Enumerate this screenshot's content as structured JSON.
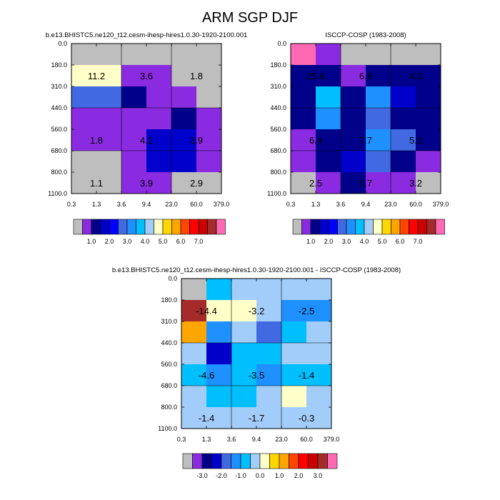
{
  "figure": {
    "title": "ARM SGP DJF"
  },
  "colors": {
    "abs_palette": [
      "#bebebe",
      "#8a2be2",
      "#00008b",
      "#0000cd",
      "#0000ff",
      "#4169e1",
      "#1e90ff",
      "#00bfff",
      "#a2cdfa",
      "#ffffc8",
      "#ffd700",
      "#ffa500",
      "#ff4500",
      "#ff0000",
      "#cd0000",
      "#a52a2a",
      "#ff69b4"
    ],
    "diff_palette": [
      "#bebebe",
      "#8a2be2",
      "#00008b",
      "#0000cd",
      "#4169e1",
      "#1e90ff",
      "#00bfff",
      "#a2cdfa",
      "#ffffc8",
      "#ffd700",
      "#ffa500",
      "#ff4500",
      "#ff0000",
      "#cd0000",
      "#a52a2a",
      "#ff69b4"
    ]
  },
  "chart_data": [
    {
      "type": "heatmap",
      "title": "b.e13.BHISTC5.ne120_t12.cesm-ihesp-hires1.0.30-1920-2100.001",
      "x_ticks": [
        "0.3",
        "1.3",
        "3.6",
        "9.4",
        "23.0",
        "60.0",
        "379.0"
      ],
      "y_ticks": [
        "0.0",
        "180.0",
        "310.0",
        "440.0",
        "560.0",
        "680.0",
        "800.0",
        "1100.0"
      ],
      "cells": [
        [
          0,
          0,
          0,
          0,
          0,
          0
        ],
        [
          9,
          9,
          1,
          1,
          0,
          0
        ],
        [
          5,
          5,
          2,
          1,
          1,
          0
        ],
        [
          1,
          1,
          1,
          1,
          2,
          1
        ],
        [
          1,
          1,
          1,
          3,
          3,
          1
        ],
        [
          0,
          0,
          1,
          3,
          3,
          1
        ],
        [
          0,
          0,
          1,
          1,
          0,
          0
        ]
      ],
      "annotations": [
        {
          "row": 1,
          "col": 0.5,
          "text": "11.2"
        },
        {
          "row": 1,
          "col": 2.5,
          "text": "3.6"
        },
        {
          "row": 1,
          "col": 4.5,
          "text": "1.8"
        },
        {
          "row": 4,
          "col": 0.5,
          "text": "1.8"
        },
        {
          "row": 4,
          "col": 2.5,
          "text": "4.2"
        },
        {
          "row": 4,
          "col": 4.5,
          "text": "3.9"
        },
        {
          "row": 6,
          "col": 0.5,
          "text": "1.1"
        },
        {
          "row": 6,
          "col": 2.5,
          "text": "3.9"
        },
        {
          "row": 6,
          "col": 4.5,
          "text": "2.9"
        }
      ],
      "colorbar": {
        "labels": [
          "1.0",
          "2.0",
          "3.0",
          "4.0",
          "5.0",
          "6.0",
          "7.0"
        ],
        "palette": "abs_palette"
      }
    },
    {
      "type": "heatmap",
      "title": "ISCCP-COSP (1983-2008)",
      "x_ticks": [
        "0.3",
        "1.3",
        "3.6",
        "9.4",
        "23.0",
        "60.0",
        "379.0"
      ],
      "y_ticks": [
        "0.0",
        "180.0",
        "310.0",
        "440.0",
        "560.0",
        "680.0",
        "800.0",
        "1100.0"
      ],
      "cells": [
        [
          16,
          1,
          0,
          0,
          0,
          0
        ],
        [
          2,
          2,
          1,
          2,
          2,
          2
        ],
        [
          2,
          7,
          2,
          6,
          3,
          2
        ],
        [
          2,
          6,
          2,
          5,
          2,
          2
        ],
        [
          1,
          2,
          2,
          6,
          5,
          2
        ],
        [
          1,
          2,
          3,
          5,
          2,
          1
        ],
        [
          0,
          1,
          2,
          1,
          1,
          0
        ]
      ],
      "annotations": [
        {
          "row": 1,
          "col": 0.5,
          "text": "25.6"
        },
        {
          "row": 1,
          "col": 2.5,
          "text": "6.8"
        },
        {
          "row": 1,
          "col": 4.5,
          "text": "4.3"
        },
        {
          "row": 4,
          "col": 0.5,
          "text": "6.4"
        },
        {
          "row": 4,
          "col": 2.5,
          "text": "7.7"
        },
        {
          "row": 4,
          "col": 4.5,
          "text": "5.3"
        },
        {
          "row": 6,
          "col": 0.5,
          "text": "2.5"
        },
        {
          "row": 6,
          "col": 2.5,
          "text": "5.7"
        },
        {
          "row": 6,
          "col": 4.5,
          "text": "3.2"
        }
      ],
      "colorbar": {
        "labels": [
          "1.0",
          "2.0",
          "3.0",
          "4.0",
          "5.0",
          "6.0",
          "7.0"
        ],
        "palette": "abs_palette"
      }
    },
    {
      "type": "heatmap",
      "title": "b.e13.BHISTC5.ne120_t12.cesm-ihesp-hires1.0.30-1920-2100.001 - ISCCP-COSP (1983-2008)",
      "x_ticks": [
        "0.3",
        "1.3",
        "3.6",
        "9.4",
        "23.0",
        "60.0",
        "379.0"
      ],
      "y_ticks": [
        "0.0",
        "180.0",
        "310.0",
        "440.0",
        "560.0",
        "680.0",
        "800.0",
        "1100.0"
      ],
      "cells": [
        [
          0,
          6,
          7,
          7,
          7,
          7
        ],
        [
          14,
          8,
          8,
          7,
          5,
          5
        ],
        [
          10,
          5,
          7,
          4,
          6,
          7
        ],
        [
          7,
          3,
          6,
          6,
          7,
          7
        ],
        [
          6,
          5,
          6,
          5,
          6,
          6
        ],
        [
          7,
          6,
          6,
          7,
          8,
          7
        ],
        [
          7,
          7,
          7,
          7,
          7,
          7
        ]
      ],
      "annotations": [
        {
          "row": 1,
          "col": 0.5,
          "text": "-14.4"
        },
        {
          "row": 1,
          "col": 2.5,
          "text": "-3.2"
        },
        {
          "row": 1,
          "col": 4.5,
          "text": "-2.5"
        },
        {
          "row": 4,
          "col": 0.5,
          "text": "-4.6"
        },
        {
          "row": 4,
          "col": 2.5,
          "text": "-3.5"
        },
        {
          "row": 4,
          "col": 4.5,
          "text": "-1.4"
        },
        {
          "row": 6,
          "col": 0.5,
          "text": "-1.4"
        },
        {
          "row": 6,
          "col": 2.5,
          "text": "-1.7"
        },
        {
          "row": 6,
          "col": 4.5,
          "text": "-0.3"
        }
      ],
      "colorbar": {
        "labels": [
          "-3.0",
          "-2.0",
          "-1.0",
          "0.0",
          "1.0",
          "2.0",
          "3.0"
        ],
        "palette": "diff_palette"
      }
    }
  ]
}
